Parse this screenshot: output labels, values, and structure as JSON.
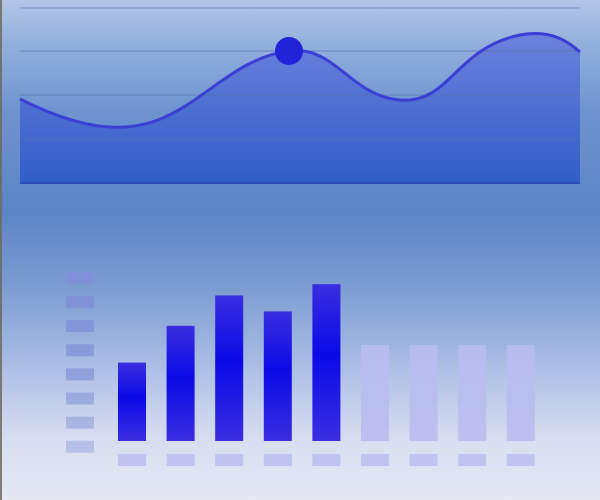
{
  "colors": {
    "area_top": "#6a7fdc",
    "area_bottom": "#2f5bc8",
    "line": "#3b3fd6",
    "marker": "#2222d8",
    "bar_active_top": "#3a2ee0",
    "bar_active_mid": "#0a0ae6",
    "bar_inactive": "#b8bdf0",
    "level_indicator": "#7f8fd6",
    "grid": "#5a6fb0"
  },
  "wave_chart": {
    "type": "line",
    "icon": "wave-area-chart",
    "grid": true,
    "highlight_index": 1,
    "samples": [
      {
        "x": 0,
        "y": 0.0
      },
      {
        "x": 1,
        "y": -0.55
      },
      {
        "x": 2,
        "y": 1.0
      },
      {
        "x": 3,
        "y": 0.0
      },
      {
        "x": 4,
        "y": 1.5
      },
      {
        "x": 5,
        "y": 1.0
      }
    ]
  },
  "bar_chart": {
    "type": "bar",
    "values": [
      0.49,
      0.72,
      0.91,
      0.81,
      0.98,
      0.6,
      0.6,
      0.6,
      0.6
    ],
    "active": [
      true,
      true,
      true,
      true,
      true,
      false,
      false,
      false,
      false
    ],
    "ylim": [
      0,
      1
    ],
    "level_segments": 8
  }
}
